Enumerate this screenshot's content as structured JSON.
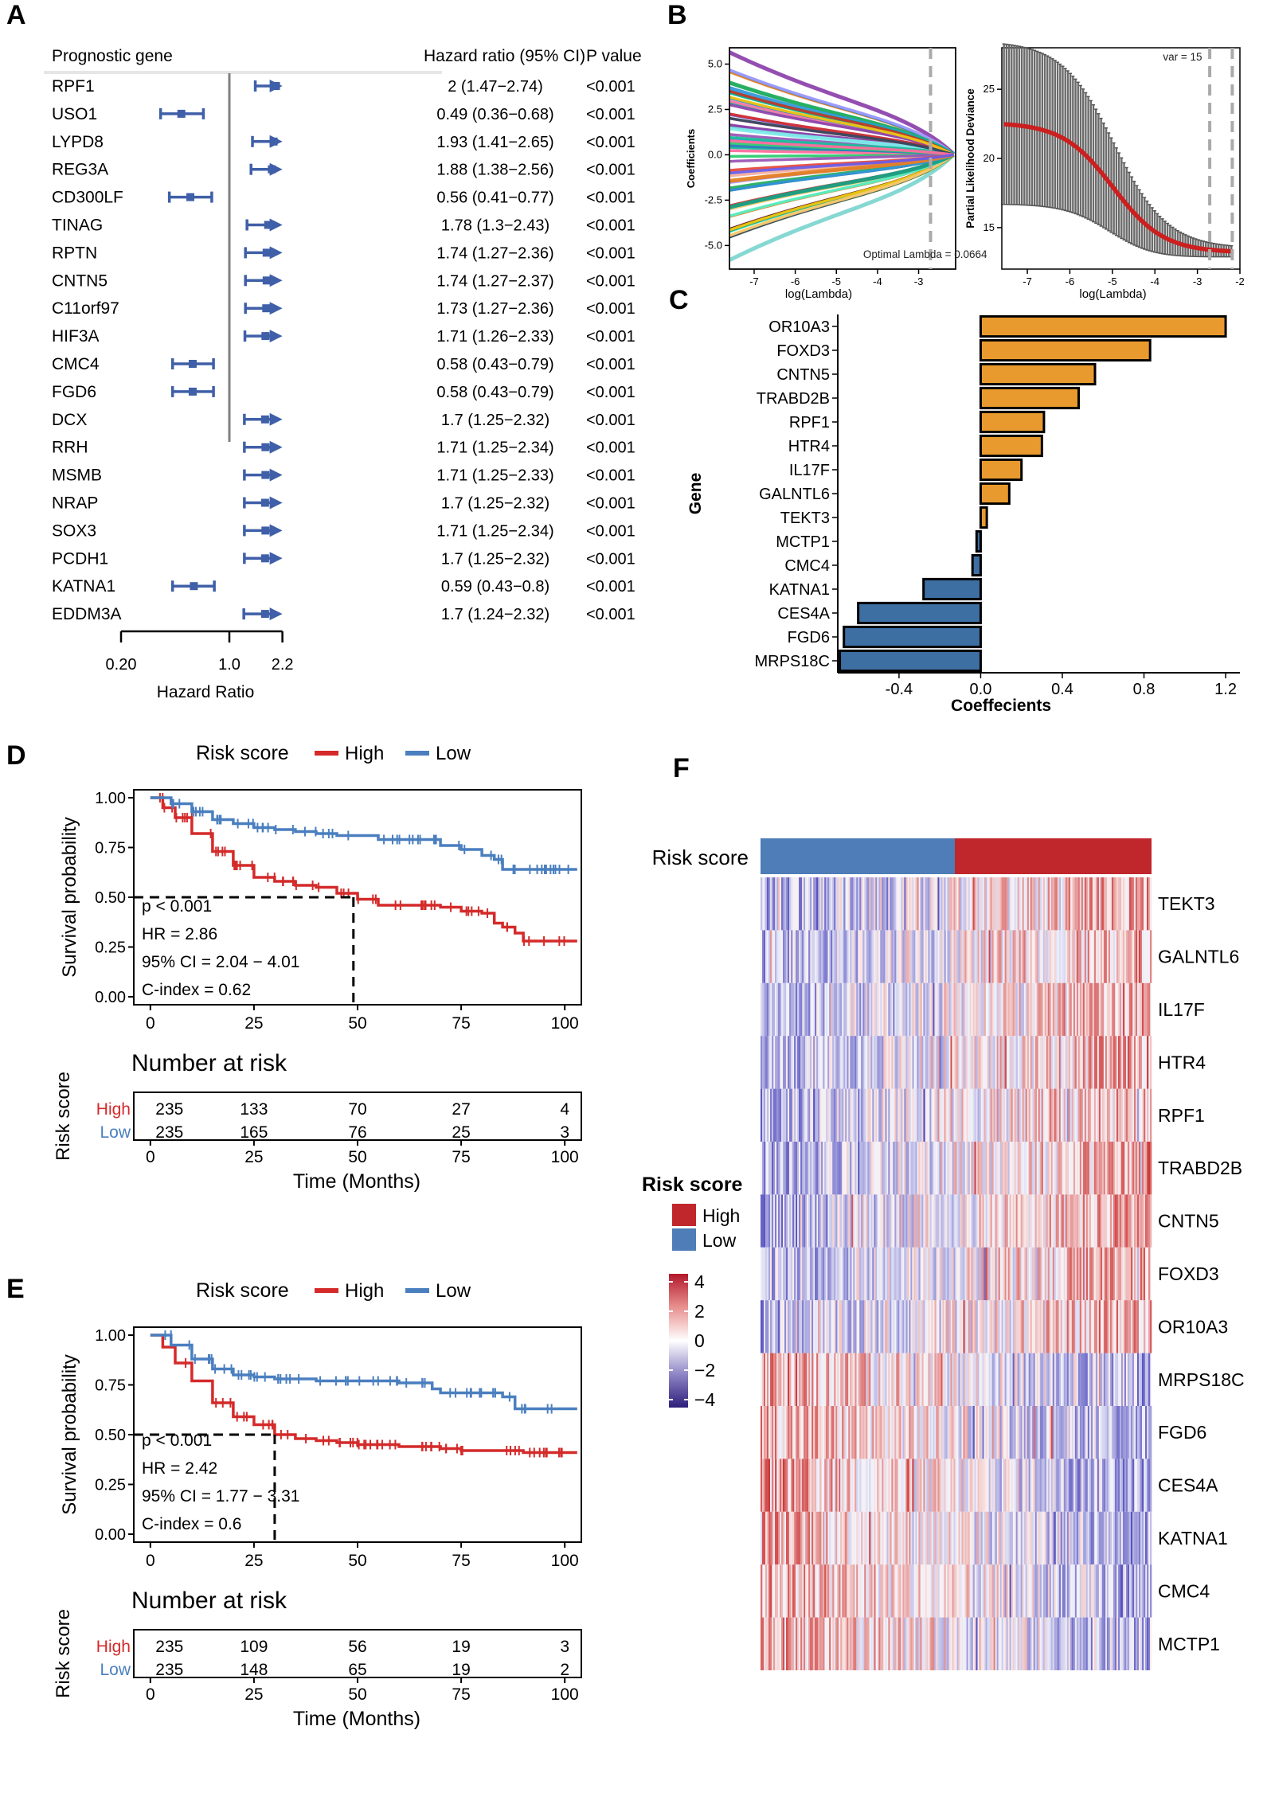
{
  "panels": {
    "a": "A",
    "b": "B",
    "c": "C",
    "d": "D",
    "e": "E",
    "f": "F"
  },
  "colors": {
    "forest": "#3F5FA8",
    "high": "#D42A2A",
    "low": "#4A7FBF",
    "pos": "#E89A2E",
    "neg": "#3E6FA3",
    "red": "#C0272D",
    "blue": "#4E7DB8"
  },
  "chart_data": [
    {
      "type": "forest",
      "id": "A",
      "headers": {
        "gene": "Prognostic gene",
        "hr": "Hazard ratio (95% CI)",
        "p": "P value"
      },
      "xlabel": "Hazard Ratio",
      "ticks": [
        "0.20",
        "1.0",
        "2.2"
      ],
      "tick_values": [
        0.2,
        1.0,
        2.2
      ],
      "rows": [
        {
          "gene": "RPF1",
          "hr": 2.0,
          "lo": 1.47,
          "hi": 2.74,
          "label": "2 (1.47−2.74)",
          "p": "<0.001"
        },
        {
          "gene": "USO1",
          "hr": 0.49,
          "lo": 0.36,
          "hi": 0.68,
          "label": "0.49 (0.36−0.68)",
          "p": "<0.001"
        },
        {
          "gene": "LYPD8",
          "hr": 1.93,
          "lo": 1.41,
          "hi": 2.65,
          "label": "1.93 (1.41−2.65)",
          "p": "<0.001"
        },
        {
          "gene": "REG3A",
          "hr": 1.88,
          "lo": 1.38,
          "hi": 2.56,
          "label": "1.88 (1.38−2.56)",
          "p": "<0.001"
        },
        {
          "gene": "CD300LF",
          "hr": 0.56,
          "lo": 0.41,
          "hi": 0.77,
          "label": "0.56 (0.41−0.77)",
          "p": "<0.001"
        },
        {
          "gene": "TINAG",
          "hr": 1.78,
          "lo": 1.3,
          "hi": 2.43,
          "label": "1.78 (1.3−2.43)",
          "p": "<0.001"
        },
        {
          "gene": "RPTN",
          "hr": 1.74,
          "lo": 1.27,
          "hi": 2.36,
          "label": "1.74 (1.27−2.36)",
          "p": "<0.001"
        },
        {
          "gene": "CNTN5",
          "hr": 1.74,
          "lo": 1.27,
          "hi": 2.37,
          "label": "1.74 (1.27−2.37)",
          "p": "<0.001"
        },
        {
          "gene": "C11orf97",
          "hr": 1.73,
          "lo": 1.27,
          "hi": 2.36,
          "label": "1.73 (1.27−2.36)",
          "p": "<0.001"
        },
        {
          "gene": "HIF3A",
          "hr": 1.71,
          "lo": 1.26,
          "hi": 2.33,
          "label": "1.71 (1.26−2.33)",
          "p": "<0.001"
        },
        {
          "gene": "CMC4",
          "hr": 0.58,
          "lo": 0.43,
          "hi": 0.79,
          "label": "0.58 (0.43−0.79)",
          "p": "<0.001"
        },
        {
          "gene": "FGD6",
          "hr": 0.58,
          "lo": 0.43,
          "hi": 0.79,
          "label": "0.58 (0.43−0.79)",
          "p": "<0.001"
        },
        {
          "gene": "DCX",
          "hr": 1.7,
          "lo": 1.25,
          "hi": 2.32,
          "label": "1.7 (1.25−2.32)",
          "p": "<0.001"
        },
        {
          "gene": "RRH",
          "hr": 1.71,
          "lo": 1.25,
          "hi": 2.34,
          "label": "1.71 (1.25−2.34)",
          "p": "<0.001"
        },
        {
          "gene": "MSMB",
          "hr": 1.71,
          "lo": 1.25,
          "hi": 2.33,
          "label": "1.71 (1.25−2.33)",
          "p": "<0.001"
        },
        {
          "gene": "NRAP",
          "hr": 1.7,
          "lo": 1.25,
          "hi": 2.32,
          "label": "1.7 (1.25−2.32)",
          "p": "<0.001"
        },
        {
          "gene": "SOX3",
          "hr": 1.71,
          "lo": 1.25,
          "hi": 2.34,
          "label": "1.71 (1.25−2.34)",
          "p": "<0.001"
        },
        {
          "gene": "PCDH1",
          "hr": 1.7,
          "lo": 1.25,
          "hi": 2.32,
          "label": "1.7 (1.25−2.32)",
          "p": "<0.001"
        },
        {
          "gene": "KATNA1",
          "hr": 0.59,
          "lo": 0.43,
          "hi": 0.8,
          "label": "0.59 (0.43−0.8)",
          "p": "<0.001"
        },
        {
          "gene": "EDDM3A",
          "hr": 1.7,
          "lo": 1.24,
          "hi": 2.32,
          "label": "1.7 (1.24−2.32)",
          "p": "<0.001"
        }
      ]
    },
    {
      "type": "line",
      "id": "B-left",
      "xlabel": "log(Lambda)",
      "ylabel": "Coefficients",
      "xticks": [
        -7,
        -6,
        -5,
        -4,
        -3
      ],
      "yticks": [
        "5.0",
        "2.5",
        "0.0",
        "-2.5",
        "-5.0"
      ],
      "xlim": [
        -7.6,
        -2.1
      ],
      "ylim": [
        -6.3,
        5.9
      ],
      "annotation": "Optimal Lambda = 0.0664",
      "vline": -2.71
    },
    {
      "type": "errorbar",
      "id": "B-right",
      "xlabel": "log(Lambda)",
      "ylabel": "Partial Likelihood Deviance",
      "xticks": [
        -7,
        -6,
        -5,
        -4,
        -3,
        -2
      ],
      "yticks": [
        15,
        20,
        25
      ],
      "xlim": [
        -7.6,
        -2.0
      ],
      "ylim": [
        12,
        28
      ],
      "annotation": "var = 15",
      "vlines": [
        -2.71,
        -2.18
      ]
    },
    {
      "type": "bar",
      "id": "C",
      "xlabel": "Coeffecients",
      "ylabel": "Gene",
      "xticks": [
        "-0.4",
        "0.0",
        "0.4",
        "0.8",
        "1.2"
      ],
      "xlim": [
        -0.7,
        1.27
      ],
      "categories": [
        "OR10A3",
        "FOXD3",
        "CNTN5",
        "TRABD2B",
        "RPF1",
        "HTR4",
        "IL17F",
        "GALNTL6",
        "TEKT3",
        "MCTP1",
        "CMC4",
        "KATNA1",
        "CES4A",
        "FGD6",
        "MRPS18C"
      ],
      "values": [
        1.2,
        0.83,
        0.56,
        0.48,
        0.31,
        0.3,
        0.2,
        0.14,
        0.03,
        -0.02,
        -0.04,
        -0.28,
        -0.6,
        -0.67,
        -0.69
      ]
    },
    {
      "type": "survival",
      "id": "D",
      "legend_title": "Risk score",
      "legend": [
        "High",
        "Low"
      ],
      "xlabel": "Time (Months)",
      "ylabel": "Survival probability",
      "xticks": [
        0,
        25,
        50,
        75,
        100
      ],
      "yticks": [
        "0.00",
        "0.25",
        "0.50",
        "0.75",
        "1.00"
      ],
      "stats": [
        "p < 0.001",
        "HR = 2.86",
        "95% CI = 2.04 − 4.01",
        "C-index = 0.62"
      ],
      "median_high": 49,
      "series": [
        {
          "name": "High",
          "x": [
            0,
            3,
            6,
            10,
            15,
            20,
            25,
            30,
            35,
            40,
            45,
            50,
            55,
            60,
            70,
            75,
            80,
            83,
            85,
            88,
            90,
            95,
            100,
            103
          ],
          "y": [
            1.0,
            0.95,
            0.9,
            0.82,
            0.73,
            0.66,
            0.6,
            0.58,
            0.56,
            0.55,
            0.52,
            0.49,
            0.46,
            0.46,
            0.45,
            0.43,
            0.42,
            0.37,
            0.35,
            0.32,
            0.28,
            0.28,
            0.28,
            0.28
          ]
        },
        {
          "name": "Low",
          "x": [
            0,
            5,
            10,
            15,
            20,
            25,
            30,
            35,
            40,
            45,
            50,
            55,
            60,
            65,
            70,
            75,
            80,
            83,
            85,
            90,
            95,
            100,
            103
          ],
          "y": [
            1.0,
            0.97,
            0.93,
            0.89,
            0.87,
            0.85,
            0.84,
            0.83,
            0.82,
            0.81,
            0.81,
            0.79,
            0.79,
            0.79,
            0.76,
            0.74,
            0.71,
            0.69,
            0.64,
            0.64,
            0.64,
            0.64,
            0.64
          ]
        }
      ],
      "risk_table_title": "Number at risk",
      "risk_table_ylabel": "Risk score",
      "risk_rows": [
        {
          "name": "High",
          "values": [
            "235",
            "133",
            "70",
            "27",
            "4"
          ]
        },
        {
          "name": "Low",
          "values": [
            "235",
            "165",
            "76",
            "25",
            "3"
          ]
        }
      ]
    },
    {
      "type": "survival",
      "id": "E",
      "legend_title": "Risk score",
      "legend": [
        "High",
        "Low"
      ],
      "xlabel": "Time (Months)",
      "ylabel": "Survival probability",
      "xticks": [
        0,
        25,
        50,
        75,
        100
      ],
      "yticks": [
        "0.00",
        "0.25",
        "0.50",
        "0.75",
        "1.00"
      ],
      "stats": [
        "p < 0.001",
        "HR = 2.42",
        "95% CI = 1.77 − 3.31",
        "C-index = 0.6"
      ],
      "median_high": 30,
      "series": [
        {
          "name": "High",
          "x": [
            0,
            3,
            6,
            10,
            15,
            20,
            25,
            30,
            35,
            40,
            45,
            50,
            60,
            70,
            75,
            80,
            90,
            100,
            103
          ],
          "y": [
            1.0,
            0.94,
            0.86,
            0.77,
            0.66,
            0.59,
            0.55,
            0.5,
            0.48,
            0.47,
            0.46,
            0.45,
            0.44,
            0.43,
            0.42,
            0.42,
            0.41,
            0.41,
            0.41
          ]
        },
        {
          "name": "Low",
          "x": [
            0,
            5,
            10,
            15,
            20,
            25,
            30,
            40,
            50,
            60,
            65,
            68,
            70,
            80,
            85,
            88,
            90,
            95,
            100,
            103
          ],
          "y": [
            1.0,
            0.95,
            0.88,
            0.83,
            0.8,
            0.79,
            0.78,
            0.77,
            0.77,
            0.76,
            0.76,
            0.73,
            0.71,
            0.71,
            0.69,
            0.63,
            0.63,
            0.63,
            0.63,
            0.63
          ]
        }
      ],
      "risk_table_title": "Number at risk",
      "risk_table_ylabel": "Risk score",
      "risk_rows": [
        {
          "name": "High",
          "values": [
            "235",
            "109",
            "56",
            "19",
            "3"
          ]
        },
        {
          "name": "Low",
          "values": [
            "235",
            "148",
            "65",
            "19",
            "2"
          ]
        }
      ]
    },
    {
      "type": "heatmap",
      "id": "F",
      "annotation_label": "Risk score",
      "genes": [
        "TEKT3",
        "GALNTL6",
        "IL17F",
        "HTR4",
        "RPF1",
        "TRABD2B",
        "CNTN5",
        "FOXD3",
        "OR10A3",
        "MRPS18C",
        "FGD6",
        "CES4A",
        "KATNA1",
        "CMC4",
        "MCTP1"
      ],
      "up_in_high": [
        true,
        true,
        true,
        true,
        true,
        true,
        true,
        true,
        true,
        false,
        false,
        false,
        false,
        false,
        false
      ],
      "legend_title": "Risk score",
      "legend": [
        "High",
        "Low"
      ],
      "scale_ticks": [
        "4",
        "2",
        "0",
        "−2",
        "−4"
      ],
      "scale_range": [
        -4,
        4
      ]
    }
  ]
}
